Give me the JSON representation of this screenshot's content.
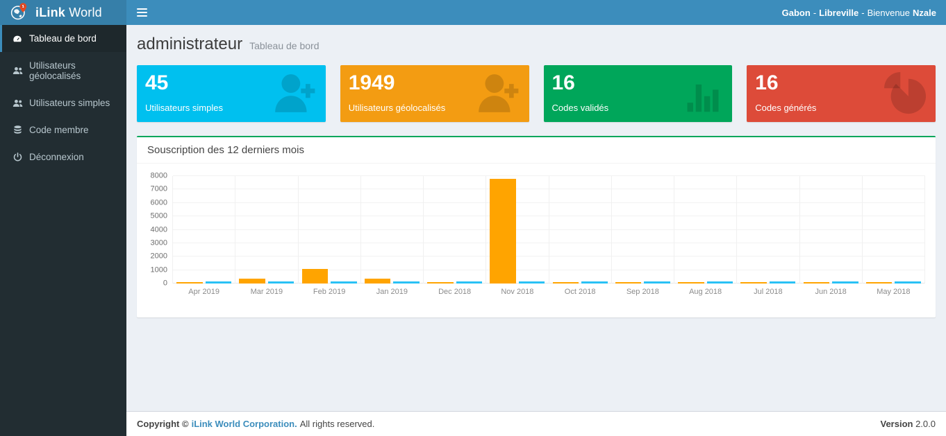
{
  "header": {
    "brand": {
      "bold": "iLink",
      "regular": "World"
    },
    "nav_right": {
      "country": "Gabon",
      "separator": "-",
      "city": "Libreville",
      "greeting": "Bienvenue",
      "username": "Nzale"
    }
  },
  "sidebar": {
    "items": [
      {
        "label": "Tableau de bord",
        "icon": "dashboard-icon",
        "active": true
      },
      {
        "label": "Utilisateurs géolocalisés",
        "icon": "users-icon",
        "active": false
      },
      {
        "label": "Utilisateurs simples",
        "icon": "users-icon",
        "active": false
      },
      {
        "label": "Code membre",
        "icon": "database-icon",
        "active": false
      },
      {
        "label": "Déconnexion",
        "icon": "power-icon",
        "active": false
      }
    ]
  },
  "page": {
    "title": "administrateur",
    "subtitle": "Tableau de bord"
  },
  "cards": [
    {
      "value": "45",
      "label": "Utilisateurs simples",
      "color": "#00c0ef",
      "icon": "user-plus-icon"
    },
    {
      "value": "1949",
      "label": "Utilisateurs géolocalisés",
      "color": "#f39c12",
      "icon": "user-plus-icon"
    },
    {
      "value": "16",
      "label": "Codes validés",
      "color": "#00a65a",
      "icon": "bar-chart-icon"
    },
    {
      "value": "16",
      "label": "Codes générés",
      "color": "#dd4b39",
      "icon": "pie-chart-icon"
    }
  ],
  "panel": {
    "title": "Souscription des 12 derniers mois",
    "accent_color": "#00a65a"
  },
  "chart_data": {
    "type": "bar",
    "title": "Souscription des 12 derniers mois",
    "categories": [
      "Apr 2019",
      "Mar 2019",
      "Feb 2019",
      "Jan 2019",
      "Dec 2018",
      "Nov 2018",
      "Oct 2018",
      "Sep 2018",
      "Aug 2018",
      "Jul 2018",
      "Jun 2018",
      "May 2018"
    ],
    "series": [
      {
        "name": "orange",
        "color": "#ffa400",
        "values": [
          50,
          350,
          1100,
          350,
          60,
          7800,
          50,
          50,
          50,
          50,
          50,
          50
        ]
      },
      {
        "name": "blue",
        "color": "#29c1f5",
        "values": [
          30,
          30,
          30,
          30,
          30,
          30,
          30,
          30,
          30,
          30,
          30,
          30
        ]
      }
    ],
    "xlabel": "",
    "ylabel": "",
    "ylim": [
      0,
      8000
    ],
    "yticks": [
      0,
      1000,
      2000,
      3000,
      4000,
      5000,
      6000,
      7000,
      8000
    ],
    "grid": true,
    "legend": false
  },
  "footer": {
    "copyright_prefix": "Copyright ©",
    "company": "iLink World Corporation.",
    "rights": "All rights reserved.",
    "version_label": "Version",
    "version": "2.0.0"
  }
}
